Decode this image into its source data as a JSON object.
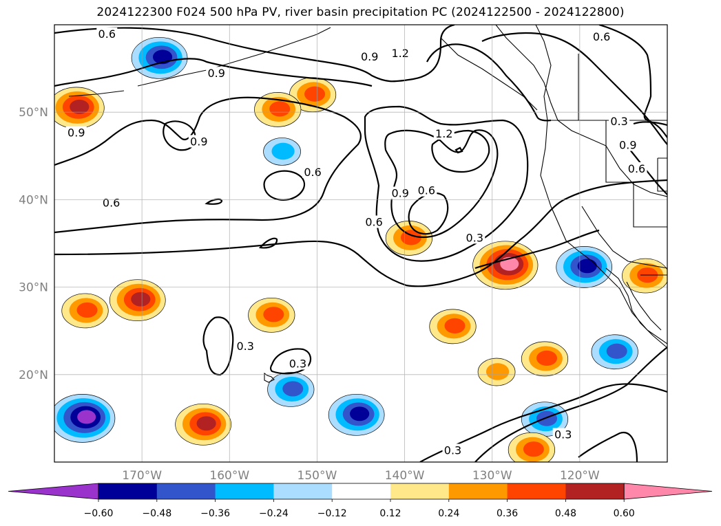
{
  "title": "2024122300 F024 500 hPa PV, river basin precipitation PC (2024122500 - 2024122800)",
  "map": {
    "projection": "PlateCarree",
    "lon_range": [
      -180,
      -110
    ],
    "lat_range": [
      10,
      60
    ],
    "lon_ticks": [
      {
        "value": -170,
        "label": "170°W"
      },
      {
        "value": -160,
        "label": "160°W"
      },
      {
        "value": -150,
        "label": "150°W"
      },
      {
        "value": -140,
        "label": "140°W"
      },
      {
        "value": -130,
        "label": "130°W"
      },
      {
        "value": -120,
        "label": "120°W"
      }
    ],
    "lat_ticks": [
      {
        "value": 50,
        "label": "50°N"
      },
      {
        "value": 40,
        "label": "40°N"
      },
      {
        "value": 30,
        "label": "30°N"
      },
      {
        "value": 20,
        "label": "20°N"
      }
    ],
    "gridlines": true,
    "tick_color": "#808080"
  },
  "contours": {
    "field": "500 hPa PV",
    "labels": [
      {
        "text": "0.6",
        "lon": -174,
        "lat": 58.9
      },
      {
        "text": "1.2",
        "lon": -140.5,
        "lat": 56.7
      },
      {
        "text": "0.9",
        "lon": -144,
        "lat": 56.3
      },
      {
        "text": "0.6",
        "lon": -117.5,
        "lat": 58.6
      },
      {
        "text": "0.9",
        "lon": -161.5,
        "lat": 54.4
      },
      {
        "text": "0.9",
        "lon": -177.5,
        "lat": 47.6
      },
      {
        "text": "0.9",
        "lon": -163.5,
        "lat": 46.6
      },
      {
        "text": "1.2",
        "lon": -135.5,
        "lat": 47.5
      },
      {
        "text": "0.3",
        "lon": -115.5,
        "lat": 48.9
      },
      {
        "text": "0.9",
        "lon": -114.5,
        "lat": 46.2
      },
      {
        "text": "0.6",
        "lon": -113.5,
        "lat": 43.5
      },
      {
        "text": "0.6",
        "lon": -150.5,
        "lat": 43.1
      },
      {
        "text": "0.9",
        "lon": -140.5,
        "lat": 40.7
      },
      {
        "text": "0.6",
        "lon": -137.5,
        "lat": 41.0
      },
      {
        "text": "0.6",
        "lon": -173.5,
        "lat": 39.6
      },
      {
        "text": "0.6",
        "lon": -143.5,
        "lat": 37.4
      },
      {
        "text": "0.3",
        "lon": -132,
        "lat": 35.6
      },
      {
        "text": "0.3",
        "lon": -158.2,
        "lat": 23.2
      },
      {
        "text": "0.3",
        "lon": -152.2,
        "lat": 21.2
      },
      {
        "text": "0.3",
        "lon": -121.9,
        "lat": 13.1
      },
      {
        "text": "0.3",
        "lon": -134.5,
        "lat": 11.3
      }
    ]
  },
  "precip_blobs": [
    {
      "lon": -168,
      "lat": 56.2,
      "sign": "neg",
      "levels": 4
    },
    {
      "lon": -177.5,
      "lat": 50.5,
      "sign": "pos",
      "levels": 4
    },
    {
      "lon": -150.5,
      "lat": 52.0,
      "sign": "pos",
      "levels": 3
    },
    {
      "lon": -154.5,
      "lat": 50.3,
      "sign": "pos",
      "levels": 3
    },
    {
      "lon": -154.0,
      "lat": 45.5,
      "sign": "neg",
      "levels": 2
    },
    {
      "lon": -139.5,
      "lat": 35.6,
      "sign": "pos",
      "levels": 3
    },
    {
      "lon": -128.5,
      "lat": 32.5,
      "sign": "pos",
      "levels": 5
    },
    {
      "lon": -119.5,
      "lat": 32.3,
      "sign": "neg",
      "levels": 4
    },
    {
      "lon": -112.5,
      "lat": 31.3,
      "sign": "pos",
      "levels": 3
    },
    {
      "lon": -170.5,
      "lat": 28.5,
      "sign": "pos",
      "levels": 4
    },
    {
      "lon": -176.5,
      "lat": 27.3,
      "sign": "pos",
      "levels": 3
    },
    {
      "lon": -134.5,
      "lat": 25.5,
      "sign": "pos",
      "levels": 3
    },
    {
      "lon": -155.2,
      "lat": 26.8,
      "sign": "pos",
      "levels": 3
    },
    {
      "lon": -124.0,
      "lat": 21.8,
      "sign": "pos",
      "levels": 3
    },
    {
      "lon": -116.0,
      "lat": 22.6,
      "sign": "neg",
      "levels": 3
    },
    {
      "lon": -153.0,
      "lat": 18.3,
      "sign": "neg",
      "levels": 3
    },
    {
      "lon": -176.8,
      "lat": 15.0,
      "sign": "neg",
      "levels": 5
    },
    {
      "lon": -163.0,
      "lat": 14.3,
      "sign": "pos",
      "levels": 4
    },
    {
      "lon": -145.5,
      "lat": 15.4,
      "sign": "neg",
      "levels": 4
    },
    {
      "lon": -124.0,
      "lat": 14.9,
      "sign": "neg",
      "levels": 3
    },
    {
      "lon": -129.5,
      "lat": 20.3,
      "sign": "pos",
      "levels": 2
    },
    {
      "lon": -125.5,
      "lat": 11.4,
      "sign": "pos",
      "levels": 3
    }
  ],
  "colorbar": {
    "ticks": [
      "−0.60",
      "−0.48",
      "−0.36",
      "−0.24",
      "−0.12",
      "0.12",
      "0.24",
      "0.36",
      "0.48",
      "0.60"
    ],
    "colors": [
      "#9933cc",
      "#000099",
      "#3355cc",
      "#00bbff",
      "#aaddff",
      "#ffffff",
      "#ffe88a",
      "#ff9900",
      "#ff4400",
      "#b22222",
      "#ff88aa"
    ],
    "extend": "both"
  }
}
